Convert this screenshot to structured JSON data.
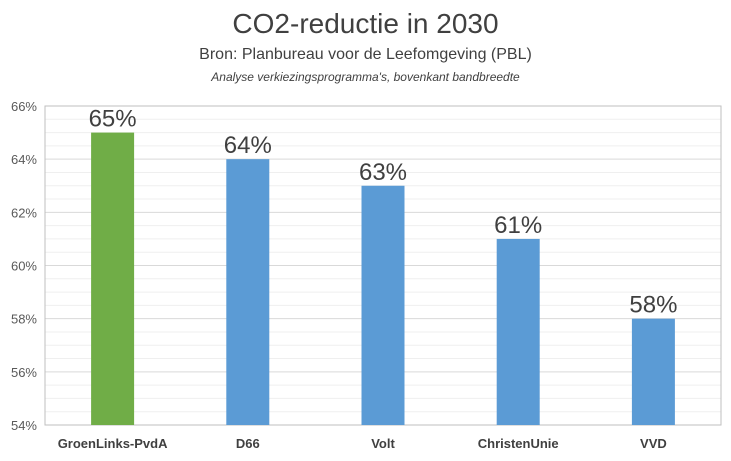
{
  "chart_data": {
    "type": "bar",
    "title": "CO2-reductie in 2030",
    "subtitle": "Bron: Planbureau voor de Leefomgeving (PBL)",
    "note": "Analyse verkiezingsprogramma's, bovenkant bandbreedte",
    "categories": [
      "GroenLinks-PvdA",
      "D66",
      "Volt",
      "ChristenUnie",
      "VVD"
    ],
    "values": [
      65,
      64,
      63,
      61,
      58
    ],
    "data_labels": [
      "65%",
      "64%",
      "63%",
      "61%",
      "58%"
    ],
    "bar_colors": [
      "#70ad47",
      "#5b9bd5",
      "#5b9bd5",
      "#5b9bd5",
      "#5b9bd5"
    ],
    "ylim": [
      54,
      66
    ],
    "yticks": [
      54,
      56,
      58,
      60,
      62,
      64,
      66
    ],
    "ytick_labels": [
      "54%",
      "56%",
      "58%",
      "60%",
      "62%",
      "64%",
      "66%"
    ],
    "grid": true,
    "xlabel": "",
    "ylabel": ""
  }
}
